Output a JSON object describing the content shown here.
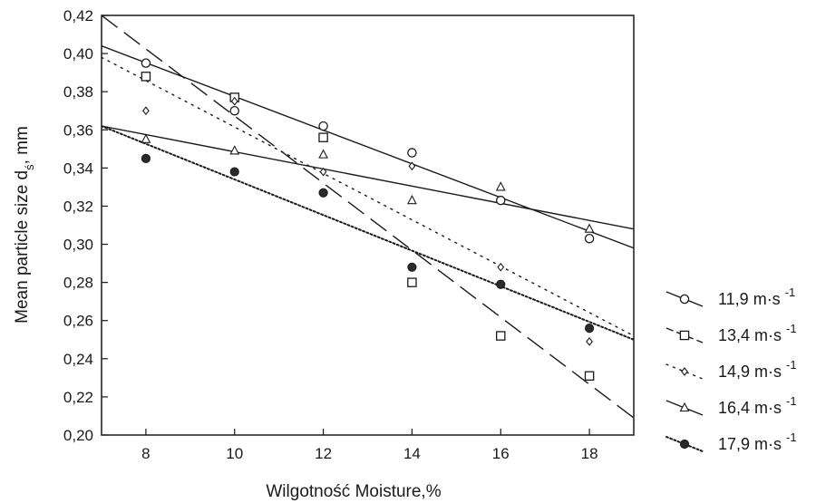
{
  "chart_data": {
    "type": "scatter",
    "xlabel": "Wilgotność Moisture,%",
    "ylabel_main": "Mean particle size  d",
    "ylabel_sub": "ś",
    "ylabel_unit": ", mm",
    "xlim": [
      7,
      19
    ],
    "ylim": [
      0.2,
      0.42
    ],
    "x_ticks": [
      8,
      10,
      12,
      14,
      16,
      18
    ],
    "x_tick_labels": [
      "8",
      "10",
      "12",
      "14",
      "16",
      "18"
    ],
    "y_ticks": [
      0.2,
      0.22,
      0.24,
      0.26,
      0.28,
      0.3,
      0.32,
      0.34,
      0.36,
      0.38,
      0.4,
      0.42
    ],
    "y_tick_labels": [
      "0,20",
      "0,22",
      "0,24",
      "0,26",
      "0,28",
      "0,30",
      "0,32",
      "0,34",
      "0,36",
      "0,38",
      "0,40",
      "0,42"
    ],
    "grid": false,
    "legend_position": "right",
    "series": [
      {
        "name": "11,9 m·s",
        "superscript": "-1",
        "marker": "circle-open",
        "line_style": "solid",
        "x": [
          8,
          10,
          12,
          14,
          16,
          18
        ],
        "y": [
          0.395,
          0.37,
          0.362,
          0.348,
          0.323,
          0.303
        ],
        "fit": [
          [
            7,
            0.404
          ],
          [
            19,
            0.298
          ]
        ]
      },
      {
        "name": "13,4 m·s",
        "superscript": "-1",
        "marker": "square-open",
        "line_style": "long-dash",
        "x": [
          8,
          10,
          12,
          14,
          16,
          18
        ],
        "y": [
          0.388,
          0.377,
          0.356,
          0.28,
          0.252,
          0.231
        ],
        "fit": [
          [
            7,
            0.42
          ],
          [
            19,
            0.209
          ]
        ]
      },
      {
        "name": "14,9 m·s",
        "superscript": "-1",
        "marker": "diamond-open",
        "line_style": "dotted",
        "x": [
          8,
          10,
          12,
          14,
          16,
          18
        ],
        "y": [
          0.37,
          0.375,
          0.338,
          0.341,
          0.288,
          0.249
        ],
        "fit": [
          [
            7,
            0.398
          ],
          [
            19,
            0.252
          ]
        ]
      },
      {
        "name": "16,4 m·s",
        "superscript": "-1",
        "marker": "triangle-open",
        "line_style": "solid",
        "x": [
          8,
          10,
          12,
          14,
          16,
          18
        ],
        "y": [
          0.355,
          0.349,
          0.347,
          0.323,
          0.33,
          0.308
        ],
        "fit": [
          [
            7,
            0.362
          ],
          [
            19,
            0.308
          ]
        ]
      },
      {
        "name": "17,9 m·s",
        "superscript": "-1",
        "marker": "circle-filled",
        "line_style": "dense-dotted",
        "x": [
          8,
          10,
          12,
          14,
          16,
          18
        ],
        "y": [
          0.345,
          0.338,
          0.327,
          0.288,
          0.279,
          0.256
        ],
        "fit": [
          [
            7,
            0.362
          ],
          [
            19,
            0.25
          ]
        ]
      }
    ]
  }
}
